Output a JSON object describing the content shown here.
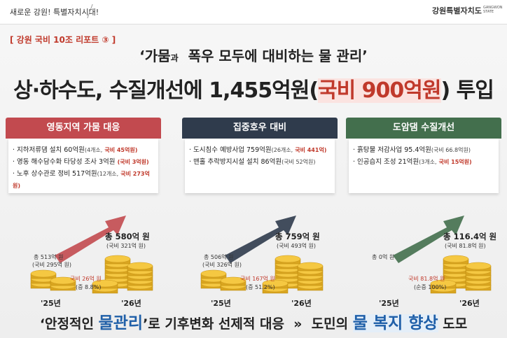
{
  "header": {
    "slogan": "새로운 강원! 특별자치시대!",
    "logo": "강원특별자치도",
    "logo_sub": "GANGWON STATE"
  },
  "tag": "[ 강원 국비 10조 리포트 ③ ]",
  "subtitle": {
    "first": "‘가뭄",
    "small": "과",
    "rest": "폭우 모두에 대비하는 물 관리’"
  },
  "title": {
    "before": "상·하수도, 수질개선에 1,455억원(",
    "highlight": "국비 900억원",
    "after": ") 투입"
  },
  "panels": [
    {
      "heading": "영동지역 가뭄 대응",
      "items": [
        {
          "text": "지하저류댐 설치 60억원",
          "note": "(4개소,",
          "grant": "국비 45억원)"
        },
        {
          "text": "영동 해수담수화 타당성 조사 3억원",
          "grant": "(국비 3억원)"
        },
        {
          "text": "노후 상수관로 정비 517억원",
          "note": "(12개소,",
          "grant": "국비 273억원)"
        }
      ]
    },
    {
      "heading": "집중호우 대비",
      "items": [
        {
          "text": "도시침수 예방사업 759억원",
          "note": "(26개소,",
          "grant": "국비 441억)"
        },
        {
          "text": "맨홀 추락방지시설 설치 86억원",
          "note": "(국비 52억원)"
        }
      ]
    },
    {
      "heading": "도암댐 수질개선",
      "items": [
        {
          "text": "흙탕물 저감사업 95.4억원",
          "note": "(국비 66.8억원)"
        },
        {
          "text": "인공습지 조성 21억원",
          "note": "(3개소,",
          "grant": "국비 15억원)"
        }
      ]
    }
  ],
  "charts": [
    {
      "prev_total": "총 513억 원",
      "prev_grant": "(국비 295억 원)",
      "increase": "국비 26억 원",
      "increase_rate": "(증 8.8%)",
      "next_total": "총 580억 원",
      "next_grant": "(국비 321억 원)",
      "prev_year": "'25년",
      "next_year": "'26년"
    },
    {
      "prev_total": "총 506억 원",
      "prev_grant": "(국비 326억 원)",
      "increase": "국비 167억 원",
      "increase_rate": "(증 51.2%)",
      "next_total": "총 759억 원",
      "next_grant": "(국비 493억 원)",
      "prev_year": "'25년",
      "next_year": "'26년"
    },
    {
      "prev_total": "총 0억 원",
      "increase": "국비 81.8억 원",
      "increase_rate": "(순증 100%)",
      "next_total": "총 116.4억 원",
      "next_grant": "(국비 81.8억 원)",
      "prev_year": "'25년",
      "next_year": "'26년"
    }
  ],
  "footer": {
    "a": "‘안정적인",
    "b": "물관리",
    "c": "’로 기후변화 선제적 대응",
    "arrow": "»",
    "d": "도민의",
    "e": "물 복지 향상",
    "f": "도모"
  }
}
